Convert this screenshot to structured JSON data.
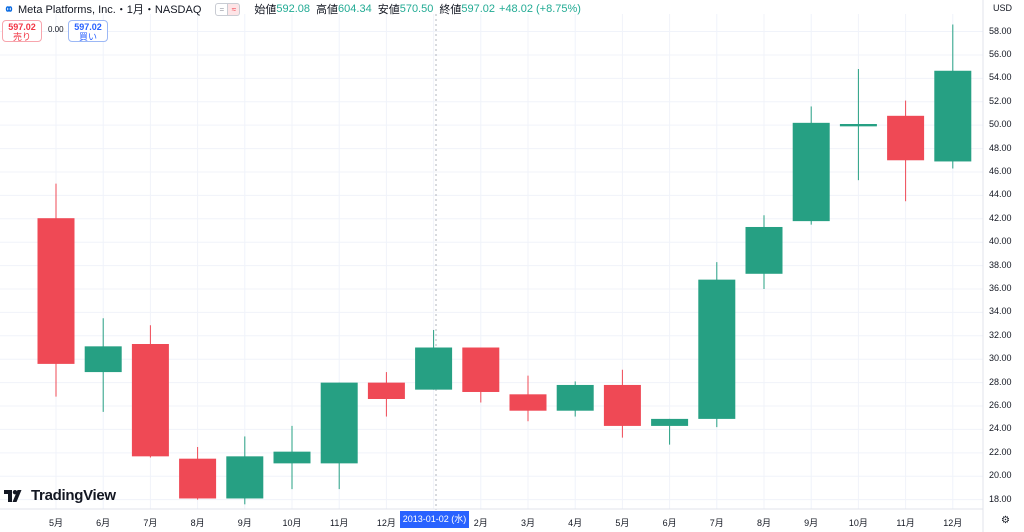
{
  "header": {
    "title": "Meta Platforms, Inc.・1月・NASDAQ",
    "open_label": "始値",
    "open_value": "592.08",
    "high_label": "高値",
    "high_value": "604.34",
    "low_label": "安値",
    "low_value": "570.50",
    "close_label": "終値",
    "close_value": "597.02",
    "change": "+48.02 (+8.75%)"
  },
  "trade": {
    "sell_price": "597.02",
    "sell_label": "売り",
    "spread": "0.00",
    "buy_price": "597.02",
    "buy_label": "買い"
  },
  "axis": {
    "currency": "USD",
    "crosshair_date": "2013-01-02 (水)"
  },
  "brand": {
    "logo_text": "TradingView"
  },
  "colors": {
    "up": "#26a083",
    "down": "#ef4955",
    "accent": "#2962ff"
  },
  "icons": {
    "chart_settings": "gear-icon",
    "symbol": "infinity-icon"
  },
  "chart_data": {
    "type": "candlestick",
    "ylim": [
      17.2,
      59.5
    ],
    "yticks": [
      "18.00",
      "20.00",
      "22.00",
      "24.00",
      "26.00",
      "28.00",
      "30.00",
      "32.00",
      "34.00",
      "36.00",
      "38.00",
      "40.00",
      "42.00",
      "44.00",
      "46.00",
      "48.00",
      "50.00",
      "52.00",
      "54.00",
      "56.00",
      "58.00"
    ],
    "categories": [
      "5月",
      "6月",
      "7月",
      "8月",
      "9月",
      "10月",
      "11月",
      "12月",
      "2013-01",
      "2月",
      "3月",
      "4月",
      "5月",
      "6月",
      "7月",
      "8月",
      "9月",
      "10月",
      "11月",
      "12月"
    ],
    "tick_labels": [
      "5月",
      "6月",
      "7月",
      "8月",
      "9月",
      "10月",
      "11月",
      "12月",
      "",
      "2月",
      "3月",
      "4月",
      "5月",
      "6月",
      "7月",
      "8月",
      "9月",
      "10月",
      "11月",
      "12月"
    ],
    "candles": [
      {
        "o": 42.05,
        "h": 45.0,
        "l": 26.8,
        "c": 29.6
      },
      {
        "o": 28.9,
        "h": 33.5,
        "l": 25.5,
        "c": 31.1
      },
      {
        "o": 31.3,
        "h": 32.9,
        "l": 21.6,
        "c": 21.7
      },
      {
        "o": 21.5,
        "h": 22.5,
        "l": 18.0,
        "c": 18.1
      },
      {
        "o": 18.1,
        "h": 23.4,
        "l": 17.6,
        "c": 21.7
      },
      {
        "o": 21.1,
        "h": 24.3,
        "l": 18.9,
        "c": 22.1
      },
      {
        "o": 21.1,
        "h": 28.0,
        "l": 18.9,
        "c": 28.0
      },
      {
        "o": 28.0,
        "h": 28.9,
        "l": 25.1,
        "c": 26.6
      },
      {
        "o": 27.4,
        "h": 32.5,
        "l": 27.4,
        "c": 31.0
      },
      {
        "o": 31.0,
        "h": 31.0,
        "l": 26.3,
        "c": 27.2
      },
      {
        "o": 27.0,
        "h": 28.6,
        "l": 24.7,
        "c": 25.6
      },
      {
        "o": 25.6,
        "h": 28.1,
        "l": 25.1,
        "c": 27.8
      },
      {
        "o": 27.8,
        "h": 29.1,
        "l": 23.3,
        "c": 24.3
      },
      {
        "o": 24.3,
        "h": 24.9,
        "l": 22.7,
        "c": 24.9
      },
      {
        "o": 24.9,
        "h": 38.3,
        "l": 24.2,
        "c": 36.8
      },
      {
        "o": 37.3,
        "h": 42.3,
        "l": 36.0,
        "c": 41.3
      },
      {
        "o": 41.8,
        "h": 51.6,
        "l": 41.5,
        "c": 50.2
      },
      {
        "o": 49.9,
        "h": 54.8,
        "l": 45.3,
        "c": 50.1
      },
      {
        "o": 50.8,
        "h": 52.1,
        "l": 43.5,
        "c": 47.0
      },
      {
        "o": 46.9,
        "h": 58.6,
        "l": 46.3,
        "c": 54.65
      }
    ],
    "grid": true
  }
}
